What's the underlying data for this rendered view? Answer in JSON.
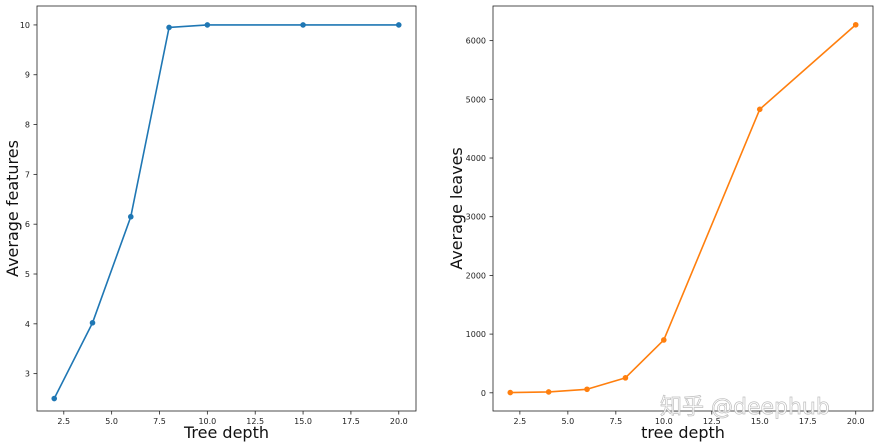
{
  "watermark": "知乎 @deephub",
  "chart_data": [
    {
      "type": "line",
      "xlabel": "Tree depth",
      "ylabel": "Average features",
      "xlim": [
        1.1,
        20.9
      ],
      "ylim": [
        2.25,
        10.38
      ],
      "xticks": [
        2.5,
        5.0,
        7.5,
        10.0,
        12.5,
        15.0,
        17.5,
        20.0
      ],
      "yticks": [
        3,
        4,
        5,
        6,
        7,
        8,
        9,
        10
      ],
      "tick_format": {
        "x": 1,
        "y": 0
      },
      "grid": false,
      "series": [
        {
          "color": "#1f77b4",
          "x": [
            2,
            4,
            6,
            8,
            10,
            15,
            20
          ],
          "y": [
            2.5,
            4.02,
            6.15,
            9.95,
            10.0,
            10.0,
            10.0
          ]
        }
      ]
    },
    {
      "type": "line",
      "xlabel": "tree depth",
      "ylabel": "Average leaves",
      "xlim": [
        1.1,
        20.9
      ],
      "ylim": [
        -310,
        6590
      ],
      "xticks": [
        2.5,
        5.0,
        7.5,
        10.0,
        12.5,
        15.0,
        17.5,
        20.0
      ],
      "yticks": [
        0,
        1000,
        2000,
        3000,
        4000,
        5000,
        6000
      ],
      "tick_format": {
        "x": 1,
        "y": 0
      },
      "grid": false,
      "series": [
        {
          "color": "#ff7f0e",
          "x": [
            2,
            4,
            6,
            8,
            10,
            15,
            20
          ],
          "y": [
            4,
            15,
            60,
            255,
            900,
            4830,
            6270
          ]
        }
      ]
    }
  ]
}
